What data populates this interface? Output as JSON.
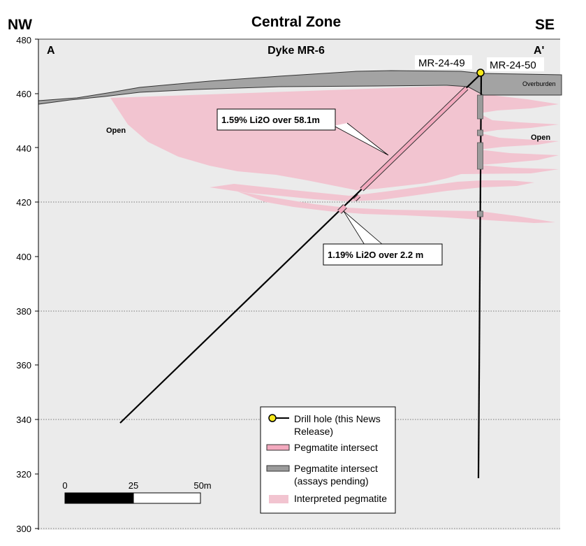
{
  "title": "Central Zone",
  "subtitle": "Dyke MR-6",
  "direction_left": "NW",
  "direction_right": "SE",
  "section_left": "A",
  "section_right": "A'",
  "y_axis": {
    "min": 300,
    "max": 480,
    "ticks": [
      "480",
      "460",
      "440",
      "420",
      "400",
      "380",
      "360",
      "340",
      "320",
      "300"
    ]
  },
  "labels": {
    "overburden": "Overburden",
    "open_left": "Open",
    "open_right": "Open"
  },
  "drillholes": {
    "hole1": "MR-24-49",
    "hole2": "MR-24-50"
  },
  "callouts": {
    "intercept1": "1.59% Li2O over 58.1m",
    "intercept2": "1.19% Li2O over 2.2 m"
  },
  "legend": {
    "drill_hole": "Drill hole (this News Release)",
    "drill_hole_line1": "Drill hole (this News",
    "drill_hole_line2": "Release)",
    "pegmatite": "Pegmatite intersect",
    "pegmatite_pending": "Pegmatite intersect (assays pending)",
    "pegmatite_pending_line1": "Pegmatite intersect",
    "pegmatite_pending_line2": "(assays pending)",
    "interpreted": "Interpreted pegmatite"
  },
  "scale_bar": {
    "label0": "0",
    "label1": "25",
    "label2": "50m"
  },
  "colors": {
    "pegmatite": "#f3a9be",
    "interpreted": "#f2c4d0",
    "pending": "#9b9b9b",
    "overburden": "#a3a3a3",
    "collar": "#f6e81a",
    "background": "#ebebeb"
  }
}
